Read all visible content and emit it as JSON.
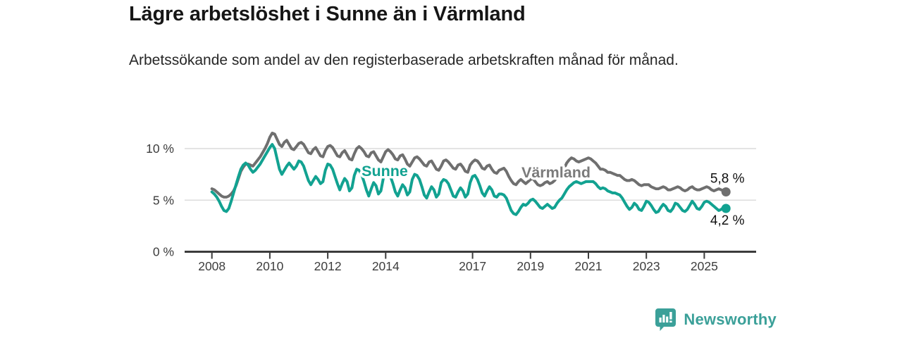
{
  "title": "Lägre arbetslöshet i Sunne än i Värmland",
  "subtitle": "Arbetssökande som andel av den registerbaserade arbetskraften månad för månad.",
  "footer": {
    "brand": "Newsworthy"
  },
  "chart_data": {
    "type": "line",
    "frequency": "monthly",
    "x_start": {
      "year": 2008,
      "month": 1
    },
    "x_tick_years": [
      2008,
      2010,
      2012,
      2014,
      2017,
      2019,
      2021,
      2023,
      2025
    ],
    "x_tick_labels": [
      "2008",
      "2010",
      "2012",
      "2014",
      "2017",
      "2019",
      "2021",
      "2023",
      "2025"
    ],
    "y_tick_values": [
      10,
      5,
      0
    ],
    "y_tick_labels": [
      "10 %",
      "5 %",
      "0 %"
    ],
    "ylim": [
      0,
      12.5
    ],
    "grid": "horizontal",
    "legend_position": "inline-labels",
    "colors": {
      "sunne": "#12a291",
      "varmland": "#6f6f6f",
      "grid": "#dcdcdc",
      "axis": "#3c3c3c",
      "tick_text": "#3d3d3d",
      "value_text": "#111111"
    },
    "series": [
      {
        "name": "Värmland",
        "color": "#6f6f6f",
        "label_color": "#7b7b7b",
        "end_label": "5,8 %",
        "end_value": 5.8,
        "values": [
          6.1,
          6.0,
          5.8,
          5.6,
          5.4,
          5.3,
          5.3,
          5.4,
          5.6,
          5.9,
          6.4,
          7.1,
          7.8,
          8.2,
          8.5,
          8.5,
          8.4,
          8.3,
          8.6,
          8.9,
          9.2,
          9.6,
          10.0,
          10.5,
          11.1,
          11.5,
          11.4,
          10.9,
          10.4,
          10.2,
          10.6,
          10.8,
          10.4,
          10.0,
          9.9,
          10.2,
          10.5,
          10.6,
          10.4,
          10.0,
          9.6,
          9.5,
          9.9,
          10.1,
          9.7,
          9.3,
          9.2,
          9.8,
          10.2,
          10.3,
          10.1,
          9.7,
          9.3,
          9.2,
          9.6,
          9.8,
          9.4,
          9.0,
          8.9,
          9.5,
          10.0,
          10.2,
          10.0,
          9.7,
          9.3,
          9.2,
          9.6,
          9.7,
          9.3,
          8.9,
          8.7,
          9.2,
          9.7,
          9.9,
          9.7,
          9.4,
          9.0,
          8.9,
          9.3,
          9.4,
          9.0,
          8.5,
          8.3,
          8.7,
          9.1,
          9.2,
          9.0,
          8.7,
          8.4,
          8.3,
          8.7,
          8.8,
          8.4,
          8.0,
          7.9,
          8.3,
          8.8,
          8.9,
          8.7,
          8.4,
          8.1,
          8.0,
          8.4,
          8.5,
          8.2,
          7.8,
          7.7,
          8.4,
          8.7,
          8.9,
          8.8,
          8.5,
          8.1,
          8.0,
          8.3,
          8.4,
          8.0,
          7.7,
          7.6,
          7.9,
          8.0,
          8.1,
          7.8,
          7.3,
          6.9,
          6.6,
          6.5,
          6.8,
          7.0,
          6.8,
          6.6,
          6.8,
          7.0,
          7.1,
          6.8,
          6.5,
          6.4,
          6.5,
          6.7,
          6.8,
          6.6,
          6.7,
          6.9,
          7.2,
          7.5,
          7.7,
          8.1,
          8.6,
          8.9,
          9.1,
          9.0,
          8.8,
          8.7,
          8.8,
          8.9,
          9.0,
          9.1,
          9.0,
          8.8,
          8.6,
          8.3,
          8.0,
          8.0,
          7.9,
          7.7,
          7.7,
          7.6,
          7.5,
          7.4,
          7.4,
          7.2,
          7.0,
          6.9,
          6.9,
          7.0,
          6.9,
          6.7,
          6.5,
          6.4,
          6.5,
          6.5,
          6.5,
          6.3,
          6.2,
          6.1,
          6.1,
          6.2,
          6.3,
          6.2,
          6.0,
          6.0,
          6.1,
          6.2,
          6.3,
          6.2,
          6.0,
          5.9,
          6.0,
          6.2,
          6.3,
          6.1,
          6.0,
          6.0,
          6.1,
          6.2,
          6.3,
          6.2,
          6.0,
          5.9,
          6.0,
          6.1,
          6.0,
          5.9,
          5.8
        ]
      },
      {
        "name": "Sunne",
        "color": "#12a291",
        "label_color": "#12a291",
        "end_label": "4,2 %",
        "end_value": 4.2,
        "values": [
          5.8,
          5.6,
          5.3,
          4.9,
          4.4,
          4.0,
          3.9,
          4.2,
          4.9,
          5.7,
          6.5,
          7.3,
          8.0,
          8.4,
          8.6,
          8.4,
          8.0,
          7.7,
          7.9,
          8.2,
          8.5,
          8.9,
          9.3,
          9.7,
          10.1,
          10.4,
          10.0,
          9.0,
          8.0,
          7.5,
          7.9,
          8.3,
          8.6,
          8.3,
          8.0,
          8.3,
          8.8,
          8.7,
          8.3,
          7.6,
          6.9,
          6.5,
          6.9,
          7.3,
          7.0,
          6.6,
          6.8,
          7.9,
          8.5,
          8.4,
          8.0,
          7.3,
          6.6,
          6.0,
          6.6,
          7.1,
          6.8,
          5.9,
          6.2,
          7.4,
          8.0,
          7.9,
          7.5,
          6.8,
          6.0,
          5.4,
          6.1,
          6.7,
          6.4,
          5.6,
          5.9,
          7.1,
          7.8,
          7.7,
          7.3,
          6.6,
          5.8,
          5.4,
          6.0,
          6.5,
          6.2,
          5.5,
          5.8,
          7.0,
          7.5,
          7.4,
          7.0,
          6.3,
          5.5,
          5.2,
          5.8,
          6.3,
          6.0,
          5.3,
          5.6,
          6.7,
          7.0,
          6.9,
          6.6,
          6.0,
          5.4,
          5.3,
          5.8,
          6.2,
          5.9,
          5.3,
          5.6,
          6.7,
          7.3,
          7.4,
          7.0,
          6.4,
          5.7,
          5.4,
          5.9,
          6.3,
          6.0,
          5.4,
          5.3,
          5.6,
          5.6,
          5.5,
          5.2,
          4.6,
          4.0,
          3.7,
          3.6,
          3.9,
          4.3,
          4.6,
          4.5,
          4.7,
          5.0,
          5.1,
          4.9,
          4.6,
          4.3,
          4.2,
          4.4,
          4.6,
          4.4,
          4.2,
          4.3,
          4.7,
          5.0,
          5.2,
          5.6,
          6.0,
          6.3,
          6.5,
          6.7,
          6.8,
          6.7,
          6.6,
          6.7,
          6.8,
          6.8,
          6.8,
          6.8,
          6.6,
          6.3,
          6.1,
          6.2,
          6.1,
          5.9,
          5.8,
          5.7,
          5.7,
          5.6,
          5.5,
          5.2,
          4.8,
          4.4,
          4.1,
          4.3,
          4.7,
          4.5,
          4.1,
          4.0,
          4.4,
          4.9,
          4.8,
          4.5,
          4.1,
          3.8,
          3.9,
          4.3,
          4.6,
          4.4,
          4.0,
          3.9,
          4.2,
          4.7,
          4.6,
          4.3,
          4.0,
          3.9,
          4.1,
          4.5,
          4.9,
          4.6,
          4.2,
          4.1,
          4.4,
          4.8,
          4.9,
          4.8,
          4.6,
          4.4,
          4.2,
          4.0,
          4.1,
          4.3,
          4.2
        ]
      }
    ]
  }
}
